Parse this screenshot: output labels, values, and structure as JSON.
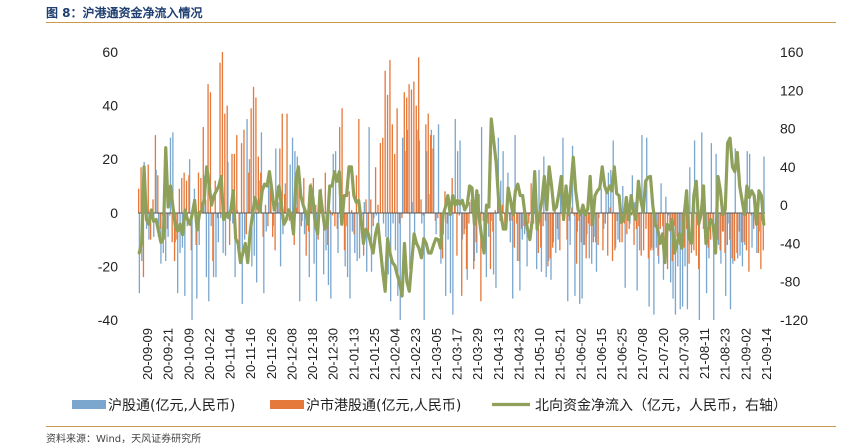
{
  "figure": {
    "title": "图 8：沪港通资金净流入情况",
    "source": "资料来源：Wind，天风证券研究所"
  },
  "colors": {
    "sh": "#7ba7cf",
    "hk": "#e5793b",
    "net": "#8ea05a",
    "title": "#1f3f70",
    "rule": "#c89a4b"
  },
  "chart_data": {
    "type": "bar",
    "title": "",
    "left_axis": {
      "ylim": [
        -40,
        60
      ],
      "ticks": [
        "-40",
        "-20",
        "0",
        "20",
        "40",
        "60"
      ]
    },
    "right_axis": {
      "ylim": [
        -120,
        160
      ],
      "ticks": [
        "-120",
        "-80",
        "-40",
        "0",
        "40",
        "80",
        "120",
        "160"
      ]
    },
    "x_ticks": [
      "20-09-09",
      "20-09-21",
      "20-10-09",
      "20-10-22",
      "20-11-04",
      "20-11-16",
      "20-11-26",
      "20-12-08",
      "20-12-18",
      "20-12-30",
      "21-01-13",
      "21-01-25",
      "21-02-04",
      "21-02-23",
      "21-03-05",
      "21-03-17",
      "21-03-29",
      "21-04-13",
      "21-04-23",
      "21-05-10",
      "21-05-21",
      "21-06-02",
      "21-06-15",
      "21-06-25",
      "21-07-08",
      "21-07-20",
      "21-07-30",
      "21-08-11",
      "21-08-23",
      "21-09-02",
      "21-09-14"
    ],
    "legend": [
      "沪股通(亿元,人民币)",
      "沪市港股通(亿元,人民币)",
      "北向资金净流入（亿元，人民币，右轴）"
    ],
    "series": [
      {
        "name": "沪股通(亿元,人民币)",
        "axis": "left",
        "values": [
          -30,
          -18,
          19,
          -6,
          -10,
          0,
          -9,
          16,
          -9,
          -19,
          -15,
          -18,
          -9,
          28,
          30,
          -11,
          -30,
          -15,
          -13,
          -31,
          -5,
          20,
          -40,
          9,
          -32,
          -12,
          4,
          14,
          -24,
          -33,
          -5,
          -24,
          -24,
          -11,
          -2,
          -15,
          -16,
          19,
          -3,
          -4,
          -24,
          1,
          -18,
          -34,
          -10,
          35,
          20,
          -20,
          -16,
          -26,
          12,
          30,
          -30,
          -7,
          12,
          12,
          -5,
          24,
          4,
          -20,
          -8,
          11,
          0,
          18,
          28,
          23,
          21,
          -33,
          -3,
          -8,
          -1,
          -24,
          9,
          -19,
          -33,
          -5,
          9,
          -23,
          -14,
          -27,
          -32,
          22,
          23,
          -15,
          -2,
          4,
          -20,
          -24,
          -32,
          -7,
          -15,
          -18,
          -17,
          -2,
          4,
          -22,
          32,
          -22,
          -2,
          -1,
          -10,
          0,
          -4,
          -9,
          -23,
          -33,
          -4,
          -14,
          -31,
          -40,
          28,
          23,
          31,
          -21,
          4,
          -12,
          31,
          27,
          -4,
          -40,
          23,
          7,
          31,
          29,
          -8,
          33,
          -19,
          -8,
          -31,
          -10,
          -30,
          -38,
          35,
          23,
          27,
          -10,
          -6,
          -25,
          4,
          9,
          -18,
          -15,
          7,
          32,
          -13,
          -24,
          -9,
          -3,
          -23,
          -28,
          28,
          12,
          23,
          -3,
          15,
          -11,
          -32,
          29,
          -18,
          -29,
          -10,
          -8,
          -20,
          -1,
          1,
          8,
          -21,
          16,
          -22,
          21,
          -24,
          -18,
          -25,
          -11,
          -15,
          -10,
          14,
          28,
          1,
          -33,
          -12,
          25,
          -31,
          -7,
          -34,
          -32,
          -12,
          -8,
          -17,
          -19,
          -9,
          -22,
          -2,
          9,
          -6,
          8,
          15,
          16,
          27,
          -13,
          -10,
          4,
          10,
          -28,
          3,
          -4,
          14,
          4,
          -29,
          -14,
          29,
          8,
          28,
          -35,
          -13,
          -38,
          -13,
          -19,
          11,
          -25,
          6,
          -1,
          -26,
          -32,
          -38,
          -20,
          -36,
          -35,
          -20,
          -36,
          17,
          -11,
          27,
          -2,
          -40,
          30,
          7,
          -30,
          -17,
          26,
          -40,
          22,
          -12,
          -19,
          -7,
          -31,
          -4,
          -36,
          -19,
          24,
          -17,
          -16,
          -20,
          -12,
          23,
          22,
          -13,
          1,
          -15,
          -7,
          -3,
          21
        ]
      },
      {
        "name": "沪市港股通(亿元,人民币)",
        "axis": "left",
        "values": [
          9,
          17,
          -24,
          2,
          18,
          -10,
          5,
          29,
          14,
          -6,
          -1,
          -7,
          -6,
          -1,
          -11,
          -18,
          -10,
          9,
          13,
          15,
          12,
          14,
          -14,
          5,
          -12,
          15,
          13,
          32,
          5,
          48,
          45,
          -18,
          12,
          -2,
          56,
          60,
          37,
          40,
          -12,
          22,
          22,
          29,
          -17,
          26,
          31,
          -8,
          15,
          39,
          47,
          43,
          21,
          15,
          -9,
          3,
          -5,
          15,
          -9,
          -14,
          10,
          24,
          37,
          7,
          37,
          -3,
          -6,
          -12,
          2,
          10,
          -5,
          13,
          -16,
          -7,
          11,
          13,
          3,
          -10,
          4,
          -2,
          15,
          -12,
          1,
          -1,
          -5,
          -6,
          32,
          39,
          -14,
          -5,
          8,
          1,
          -8,
          14,
          35,
          -4,
          -16,
          5,
          -9,
          5,
          -5,
          17,
          3,
          26,
          28,
          53,
          44,
          57,
          33,
          22,
          39,
          -4,
          -2,
          45,
          43,
          48,
          46,
          49,
          40,
          58,
          5,
          -1,
          33,
          37,
          29,
          24,
          -3,
          -2,
          -9,
          -17,
          8,
          -4,
          4,
          13,
          3,
          -16,
          -1,
          -31,
          -8,
          -21,
          -4,
          5,
          -21,
          -11,
          6,
          -33,
          -3,
          -9,
          -4,
          -21,
          -7,
          1,
          7,
          -3,
          3,
          -6,
          4,
          -3,
          -3,
          -13,
          -4,
          -18,
          -6,
          -5,
          -4,
          -4,
          11,
          -4,
          0,
          -15,
          -13,
          -5,
          -3,
          -20,
          -17,
          -13,
          1,
          -6,
          -14,
          -1,
          1,
          -10,
          -3,
          2,
          -1,
          -19,
          -3,
          -11,
          -12,
          -17,
          -4,
          -5,
          -11,
          -11,
          -12,
          0,
          -14,
          -4,
          -16,
          2,
          -18,
          -14,
          -3,
          -11,
          -11,
          -4,
          -8,
          -6,
          -1,
          -12,
          -6,
          -5,
          -16,
          -14,
          -6,
          -17,
          -14,
          -14,
          -1,
          -16,
          -6,
          -5,
          -13,
          -21,
          -7,
          -18,
          -5,
          -9,
          -12,
          -12,
          -13,
          -6,
          -19,
          -15,
          -14,
          -16,
          -21,
          -2,
          -6,
          -9,
          -13,
          -10,
          -6,
          0,
          -10,
          -14,
          -7,
          -15,
          -12,
          -10,
          -17,
          -18,
          -15,
          -7,
          -11,
          -11,
          -14,
          -22,
          -1,
          -6,
          -1,
          -15,
          -21,
          -14,
          -3,
          -1,
          -1,
          -13,
          -11,
          -20,
          -7,
          -2,
          -12
        ]
      },
      {
        "name": "北向资金净流入（亿元，人民币，右轴）",
        "axis": "right",
        "values": [
          -50,
          -40,
          40,
          -15,
          -20,
          -5,
          -17,
          -15,
          -27,
          -39,
          -35,
          60,
          -2,
          20,
          -2,
          -22,
          -27,
          -20,
          -31,
          -5,
          -15,
          -20,
          -9,
          5,
          -26,
          -9,
          -5,
          7,
          40,
          21,
          0,
          10,
          15,
          20,
          30,
          -15,
          -10,
          -13,
          -5,
          15,
          -35,
          -40,
          -60,
          -50,
          -40,
          -60,
          -28,
          -10,
          8,
          -2,
          -7,
          15,
          22,
          20,
          35,
          16,
          -5,
          5,
          20,
          0,
          -20,
          -15,
          -5,
          -10,
          -30,
          27,
          40,
          10,
          0,
          -7,
          -20,
          20,
          8,
          -20,
          -30,
          15,
          -6,
          -25,
          -20,
          20,
          20,
          35,
          25,
          35,
          -20,
          10,
          10,
          40,
          40,
          10,
          3,
          5,
          -15,
          -40,
          -25,
          -30,
          -40,
          -50,
          -30,
          -20,
          -45,
          -70,
          -90,
          -35,
          -50,
          -60,
          -63,
          -73,
          -81,
          -95,
          -40,
          -80,
          -90,
          -60,
          -30,
          -40,
          -45,
          -55,
          -35,
          -40,
          -50,
          -50,
          -42,
          -35,
          -36,
          -45,
          -10,
          -2,
          10,
          -10,
          10,
          0,
          5,
          1,
          5,
          -5,
          0,
          20,
          18,
          -20,
          15,
          -14,
          -33,
          -50,
          0,
          -2,
          90,
          67,
          45,
          7,
          -10,
          -25,
          -25,
          18,
          5,
          -10,
          15,
          22,
          10,
          10,
          -10,
          -25,
          -36,
          -15,
          35,
          -25,
          -10,
          5,
          30,
          -5,
          40,
          20,
          -5,
          -2,
          12,
          30,
          -15,
          20,
          -10,
          20,
          50,
          15,
          -5,
          -10,
          0,
          -10,
          -4,
          30,
          -20,
          10,
          15,
          18,
          40,
          20,
          13,
          20,
          15,
          40,
          12,
          10,
          -18,
          -15,
          8,
          -15,
          10,
          -7,
          -15,
          25,
          5,
          -7,
          25,
          29,
          30,
          -1,
          -20,
          -25,
          -40,
          -30,
          -60,
          -20,
          -25,
          -15,
          -50,
          -40,
          -30,
          -45,
          -10,
          15,
          -35,
          -40,
          10,
          25,
          -20,
          -10,
          20,
          -40,
          -25,
          -15,
          -20,
          -50,
          30,
          15,
          -10,
          -5,
          65,
          70,
          40,
          35,
          55,
          20,
          5,
          -10,
          20,
          8,
          15,
          10,
          -20,
          15,
          10,
          -20
        ]
      }
    ]
  }
}
